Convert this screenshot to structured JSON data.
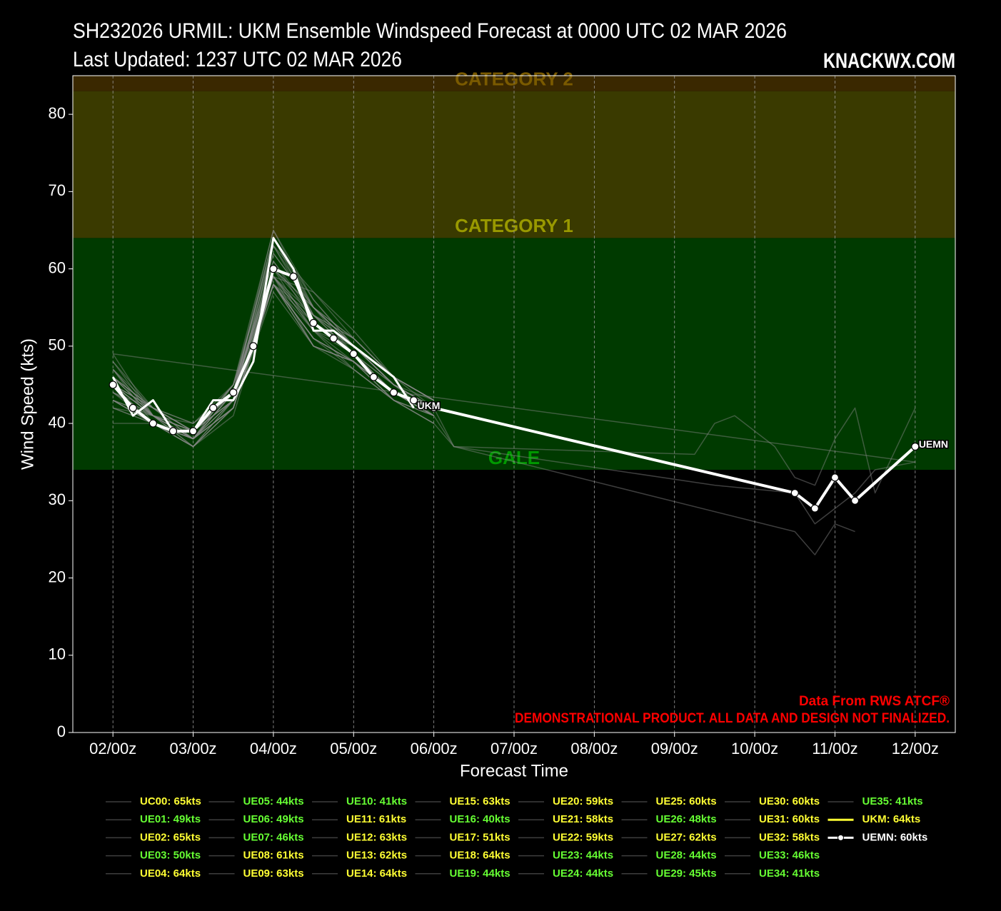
{
  "chart_data": {
    "type": "line",
    "title": "SH232026 URMIL: UKM Ensemble Windspeed Forecast at 0000 UTC 02 MAR 2026",
    "subtitle": "Last Updated: 1237 UTC 02 MAR 2026",
    "brand": "KNACKWX.COM",
    "xlabel": "Forecast Time",
    "ylabel": "Wind Speed (kts)",
    "annotations": [
      "Data From RWS ATCF®",
      "DEMONSTRATIONAL PRODUCT. ALL DATA AND DESIGN NOT FINALIZED."
    ],
    "xlim": [
      -12,
      252
    ],
    "ylim": [
      0,
      85
    ],
    "yticks": [
      0,
      10,
      20,
      30,
      40,
      50,
      60,
      70,
      80
    ],
    "xticks": [
      {
        "value": 0,
        "label": "02/00z"
      },
      {
        "value": 24,
        "label": "03/00z"
      },
      {
        "value": 48,
        "label": "04/00z"
      },
      {
        "value": 72,
        "label": "05/00z"
      },
      {
        "value": 96,
        "label": "06/00z"
      },
      {
        "value": 120,
        "label": "07/00z"
      },
      {
        "value": 144,
        "label": "08/00z"
      },
      {
        "value": 168,
        "label": "09/00z"
      },
      {
        "value": 192,
        "label": "10/00z"
      },
      {
        "value": 216,
        "label": "11/00z"
      },
      {
        "value": 240,
        "label": "12/00z"
      }
    ],
    "grid": "x",
    "bands": [
      {
        "name": "GALE",
        "from": 34,
        "to": 64,
        "color": "#003a00",
        "label_color": "#009900"
      },
      {
        "name": "CATEGORY 1",
        "from": 64,
        "to": 83,
        "color": "#3a3a00",
        "label_color": "#999900"
      },
      {
        "name": "CATEGORY 2",
        "from": 83,
        "to": 96,
        "color": "#3a2800",
        "label_color": "#7a5a00"
      }
    ],
    "x": [
      0,
      12,
      24,
      36,
      48,
      60,
      72,
      84,
      96
    ],
    "series": [
      {
        "name": "UC00",
        "legend_label": "UC00: 65kts",
        "color": "#8a8a8a",
        "legend_color": "#ffff33",
        "values": [
          46,
          41,
          38,
          44,
          65,
          55,
          50,
          45,
          41
        ]
      },
      {
        "name": "UE01",
        "legend_label": "UE01: 49kts",
        "color": "#8a8a8a",
        "legend_color": "#66ff33",
        "x": [
          0,
          240
        ],
        "values": [
          49,
          35
        ]
      },
      {
        "name": "UE02",
        "legend_label": "UE02: 65kts",
        "color": "#8a8a8a",
        "legend_color": "#ffff33",
        "values": [
          48,
          42,
          39,
          45,
          65,
          56,
          50,
          45,
          42
        ]
      },
      {
        "name": "UE03",
        "legend_label": "UE03: 50kts",
        "color": "#8a8a8a",
        "legend_color": "#66ff33",
        "values": [
          43,
          41,
          37,
          42,
          57,
          50,
          48,
          43,
          41
        ]
      },
      {
        "name": "UE04",
        "legend_label": "UE04: 64kts",
        "color": "#8a8a8a",
        "legend_color": "#ffff33",
        "values": [
          47,
          40,
          38,
          44,
          64,
          54,
          51,
          46,
          43
        ]
      },
      {
        "name": "UE05",
        "legend_label": "UE05: 44kts",
        "color": "#8a8a8a",
        "legend_color": "#66ff33",
        "x": [
          0,
          12,
          24,
          36,
          48,
          60,
          72,
          84,
          96,
          102,
          204,
          210,
          216,
          222
        ],
        "values": [
          49,
          41,
          37,
          42,
          58,
          51,
          48,
          43,
          40,
          37,
          26,
          23,
          27,
          26
        ]
      },
      {
        "name": "UE06",
        "legend_label": "UE06: 49kts",
        "color": "#8a8a8a",
        "legend_color": "#66ff33",
        "values": [
          45,
          42,
          39,
          43,
          59,
          53,
          49,
          44,
          41
        ]
      },
      {
        "name": "UE07",
        "legend_label": "UE07: 46kts",
        "color": "#8a8a8a",
        "legend_color": "#66ff33",
        "values": [
          42,
          40,
          38,
          45,
          60,
          52,
          47,
          43,
          41
        ]
      },
      {
        "name": "UE08",
        "legend_label": "UE08: 61kts",
        "color": "#8a8a8a",
        "legend_color": "#ffff33",
        "values": [
          46,
          41,
          40,
          44,
          61,
          54,
          50,
          45,
          42
        ]
      },
      {
        "name": "UE09",
        "legend_label": "UE09: 63kts",
        "color": "#8a8a8a",
        "legend_color": "#ffff33",
        "values": [
          44,
          42,
          39,
          43,
          63,
          55,
          51,
          46,
          43
        ]
      },
      {
        "name": "UE10",
        "legend_label": "UE10: 41kts",
        "color": "#8a8a8a",
        "legend_color": "#66ff33",
        "values": [
          43,
          40,
          38,
          42,
          58,
          50,
          48,
          44,
          41
        ]
      },
      {
        "name": "UE11",
        "legend_label": "UE11: 61kts",
        "color": "#8a8a8a",
        "legend_color": "#ffff33",
        "values": [
          45,
          41,
          39,
          44,
          61,
          53,
          50,
          45,
          42
        ]
      },
      {
        "name": "UE12",
        "legend_label": "UE12: 63kts",
        "color": "#8a8a8a",
        "legend_color": "#ffff33",
        "values": [
          47,
          42,
          38,
          45,
          63,
          57,
          51,
          46,
          43
        ]
      },
      {
        "name": "UE13",
        "legend_label": "UE13: 62kts",
        "color": "#8a8a8a",
        "legend_color": "#ffff33",
        "values": [
          45,
          40,
          37,
          43,
          62,
          55,
          49,
          45,
          42
        ]
      },
      {
        "name": "UE14",
        "legend_label": "UE14: 64kts",
        "color": "#8a8a8a",
        "legend_color": "#ffff33",
        "values": [
          46,
          41,
          38,
          44,
          64,
          56,
          50,
          46,
          43
        ]
      },
      {
        "name": "UE15",
        "legend_label": "UE15: 63kts",
        "color": "#8a8a8a",
        "legend_color": "#ffff33",
        "values": [
          44,
          41,
          39,
          43,
          63,
          54,
          49,
          44,
          42
        ]
      },
      {
        "name": "UE16",
        "legend_label": "UE16: 40kts",
        "color": "#8a8a8a",
        "legend_color": "#66ff33",
        "values": [
          40,
          40,
          37,
          41,
          58,
          50,
          47,
          43,
          40
        ]
      },
      {
        "name": "UE17",
        "legend_label": "UE17: 51kts",
        "color": "#8a8a8a",
        "legend_color": "#ffff33",
        "values": [
          45,
          42,
          40,
          44,
          59,
          57,
          52,
          46,
          43
        ]
      },
      {
        "name": "UE18",
        "legend_label": "UE18: 64kts",
        "color": "#8a8a8a",
        "legend_color": "#ffff33",
        "values": [
          47,
          41,
          38,
          44,
          64,
          55,
          50,
          45,
          42
        ]
      },
      {
        "name": "UE19",
        "legend_label": "UE19: 44kts",
        "color": "#8a8a8a",
        "legend_color": "#66ff33",
        "values": [
          43,
          40,
          38,
          42,
          58,
          51,
          48,
          44,
          41
        ]
      },
      {
        "name": "UE20",
        "legend_label": "UE20: 59kts",
        "color": "#8a8a8a",
        "legend_color": "#ffff33",
        "x": [
          0,
          12,
          24,
          36,
          48,
          60,
          72,
          84,
          96,
          102,
          174,
          180,
          186,
          198,
          204,
          210,
          216,
          222,
          228,
          240
        ],
        "values": [
          46,
          42,
          39,
          45,
          59,
          53,
          50,
          45,
          42,
          37,
          36,
          40,
          41,
          37,
          33,
          32,
          38,
          42,
          31,
          42
        ]
      },
      {
        "name": "UE21",
        "legend_label": "UE21: 58kts",
        "color": "#8a8a8a",
        "legend_color": "#ffff33",
        "values": [
          45,
          41,
          38,
          43,
          58,
          53,
          49,
          45,
          42
        ]
      },
      {
        "name": "UE22",
        "legend_label": "UE22: 59kts",
        "color": "#8a8a8a",
        "legend_color": "#ffff33",
        "values": [
          44,
          40,
          39,
          44,
          59,
          54,
          49,
          44,
          41
        ]
      },
      {
        "name": "UE23",
        "legend_label": "UE23: 44kts",
        "color": "#8a8a8a",
        "legend_color": "#66ff33",
        "values": [
          42,
          41,
          38,
          42,
          59,
          50,
          48,
          43,
          41
        ]
      },
      {
        "name": "UE24",
        "legend_label": "UE24: 44kts",
        "color": "#8a8a8a",
        "legend_color": "#66ff33",
        "values": [
          43,
          40,
          37,
          43,
          58,
          51,
          47,
          43,
          40
        ]
      },
      {
        "name": "UE25",
        "legend_label": "UE25: 60kts",
        "color": "#8a8a8a",
        "legend_color": "#ffff33",
        "values": [
          46,
          42,
          39,
          44,
          60,
          55,
          50,
          45,
          42
        ]
      },
      {
        "name": "UE26",
        "legend_label": "UE26: 48kts",
        "color": "#8a8a8a",
        "legend_color": "#66ff33",
        "x": [
          0,
          12,
          24,
          36,
          48,
          60,
          72,
          84,
          96,
          102,
          180,
          204,
          210,
          216,
          222,
          228,
          240
        ],
        "values": [
          48,
          41,
          38,
          43,
          58,
          52,
          49,
          44,
          41,
          37,
          32,
          31,
          27,
          29,
          31,
          34,
          35
        ]
      },
      {
        "name": "UE27",
        "legend_label": "UE27: 62kts",
        "color": "#8a8a8a",
        "legend_color": "#ffff33",
        "values": [
          45,
          41,
          39,
          45,
          62,
          55,
          51,
          46,
          43
        ]
      },
      {
        "name": "UE28",
        "legend_label": "UE28: 44kts",
        "color": "#8a8a8a",
        "legend_color": "#66ff33",
        "values": [
          43,
          40,
          38,
          42,
          58,
          51,
          48,
          44,
          41
        ]
      },
      {
        "name": "UE29",
        "legend_label": "UE29: 45kts",
        "color": "#8a8a8a",
        "legend_color": "#66ff33",
        "values": [
          45,
          41,
          39,
          43,
          59,
          52,
          48,
          44,
          42
        ]
      },
      {
        "name": "UE30",
        "legend_label": "UE30: 60kts",
        "color": "#8a8a8a",
        "legend_color": "#ffff33",
        "values": [
          46,
          42,
          38,
          44,
          60,
          54,
          50,
          45,
          42
        ]
      },
      {
        "name": "UE31",
        "legend_label": "UE31: 60kts",
        "color": "#8a8a8a",
        "legend_color": "#ffff33",
        "values": [
          47,
          41,
          39,
          44,
          60,
          55,
          50,
          45,
          43
        ]
      },
      {
        "name": "UE32",
        "legend_label": "UE32: 58kts",
        "color": "#8a8a8a",
        "legend_color": "#ffff33",
        "values": [
          45,
          42,
          40,
          45,
          58,
          54,
          51,
          46,
          42
        ]
      },
      {
        "name": "UE33",
        "legend_label": "UE33: 46kts",
        "color": "#8a8a8a",
        "legend_color": "#66ff33",
        "values": [
          44,
          41,
          38,
          43,
          59,
          52,
          50,
          46,
          43
        ]
      },
      {
        "name": "UE34",
        "legend_label": "UE34: 41kts",
        "color": "#8a8a8a",
        "legend_color": "#66ff33",
        "values": [
          42,
          40,
          37,
          42,
          58,
          51,
          48,
          44,
          41
        ]
      },
      {
        "name": "UE35",
        "legend_label": "UE35: 41kts",
        "color": "#8a8a8a",
        "legend_color": "#66ff33",
        "values": [
          43,
          41,
          38,
          42,
          58,
          50,
          48,
          44,
          41
        ]
      },
      {
        "name": "UKM",
        "legend_label": "UKM: 64kts",
        "color": "#ffffff",
        "legend_color": "#ffff33",
        "x": [
          0,
          6,
          12,
          18,
          24,
          30,
          36,
          42,
          48,
          54,
          60,
          66,
          72,
          78,
          84,
          90
        ],
        "values": [
          46,
          41,
          43,
          39,
          39,
          43,
          43,
          48,
          64,
          60,
          52,
          52,
          50,
          48,
          46,
          42
        ]
      },
      {
        "name": "UEMN",
        "legend_label": "UEMN: 60kts",
        "color": "#ffffff",
        "legend_color": "#ffffff",
        "markers": true,
        "x": [
          0,
          6,
          12,
          18,
          24,
          30,
          36,
          42,
          48,
          54,
          60,
          66,
          72,
          78,
          84,
          90,
          96,
          204,
          210,
          216,
          222,
          240
        ],
        "values": [
          45,
          42,
          40,
          39,
          39,
          42,
          44,
          50,
          60,
          59,
          53,
          51,
          49,
          46,
          44,
          43,
          42,
          31,
          29,
          33,
          30,
          37
        ]
      }
    ]
  }
}
